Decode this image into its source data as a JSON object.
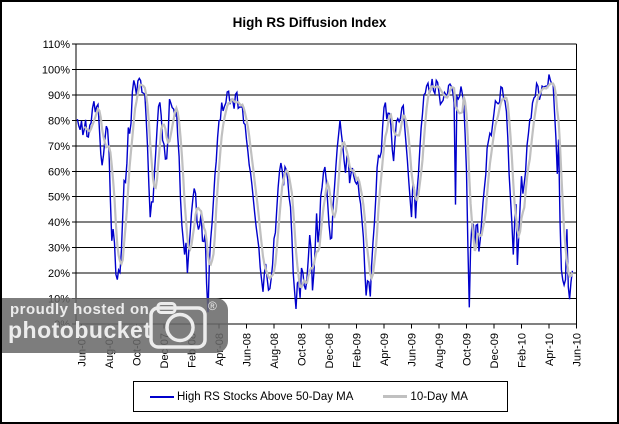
{
  "title": "High RS Diffusion Index",
  "legend": {
    "items": [
      {
        "label": "High RS Stocks Above 50-Day MA",
        "color": "#0000CC"
      },
      {
        "label": "10-Day MA",
        "color": "#C0C0C0"
      }
    ]
  },
  "watermark": {
    "line1": "proudly hosted on",
    "line2": "photobucket",
    "registered_mark": "®",
    "icon": "camera-icon"
  },
  "colors": {
    "series_blue": "#0000CC",
    "series_gray": "#C0C0C0",
    "grid": "#000000",
    "background": "#FFFFFF",
    "watermark_bg": "rgba(104,104,104,0.86)"
  },
  "chart_data": {
    "type": "line",
    "title": "High RS Diffusion Index",
    "xlabel": "",
    "ylabel": "",
    "ylim": [
      0,
      110
    ],
    "grid": "horizontal gridlines every 10%",
    "legend_position": "bottom center",
    "y_tick_labels": [
      "0%",
      "10%",
      "20%",
      "30%",
      "40%",
      "50%",
      "60%",
      "70%",
      "80%",
      "90%",
      "100%",
      "110%"
    ],
    "y_tick_values": [
      0,
      10,
      20,
      30,
      40,
      50,
      60,
      70,
      80,
      90,
      100,
      110
    ],
    "x_tick_labels": [
      "Jun-07",
      "Aug-07",
      "Oct-07",
      "Dec-07",
      "Feb-08",
      "Apr-08",
      "Jun-08",
      "Aug-08",
      "Oct-08",
      "Dec-08",
      "Feb-09",
      "Apr-09",
      "Jun-09",
      "Aug-09",
      "Oct-09",
      "Dec-09",
      "Feb-10",
      "Apr-10",
      "Jun-10"
    ],
    "x_unit": "months since Jun-2007 (ticks every 2 months)",
    "series": [
      {
        "name": "High RS Stocks Above 50-Day MA",
        "color": "#0000CC",
        "style": "jagged daily line",
        "keypoints_month_value": [
          [
            -0.3,
            82
          ],
          [
            -0.15,
            74
          ],
          [
            0,
            80
          ],
          [
            0.15,
            73
          ],
          [
            0.3,
            79
          ],
          [
            0.45,
            71
          ],
          [
            0.6,
            78
          ],
          [
            0.75,
            83
          ],
          [
            0.9,
            87
          ],
          [
            1.05,
            82
          ],
          [
            1.2,
            87
          ],
          [
            1.35,
            72
          ],
          [
            1.5,
            60
          ],
          [
            1.65,
            68
          ],
          [
            1.8,
            76
          ],
          [
            1.95,
            80
          ],
          [
            2.05,
            55
          ],
          [
            2.15,
            38
          ],
          [
            2.25,
            30
          ],
          [
            2.35,
            42
          ],
          [
            2.45,
            25
          ],
          [
            2.55,
            10
          ],
          [
            2.65,
            28
          ],
          [
            2.75,
            16
          ],
          [
            2.85,
            24
          ],
          [
            2.95,
            35
          ],
          [
            3.05,
            52
          ],
          [
            3.15,
            60
          ],
          [
            3.25,
            55
          ],
          [
            3.35,
            70
          ],
          [
            3.45,
            80
          ],
          [
            3.55,
            72
          ],
          [
            3.65,
            88
          ],
          [
            3.75,
            92
          ],
          [
            3.85,
            96
          ],
          [
            3.95,
            90
          ],
          [
            4.05,
            94
          ],
          [
            4.15,
            97
          ],
          [
            4.25,
            93
          ],
          [
            4.35,
            96
          ],
          [
            4.45,
            90
          ],
          [
            4.55,
            92
          ],
          [
            4.65,
            84
          ],
          [
            4.8,
            70
          ],
          [
            4.9,
            55
          ],
          [
            5,
            42
          ],
          [
            5.1,
            50
          ],
          [
            5.2,
            46
          ],
          [
            5.3,
            60
          ],
          [
            5.45,
            72
          ],
          [
            5.6,
            85
          ],
          [
            5.75,
            88
          ],
          [
            5.85,
            78
          ],
          [
            5.95,
            62
          ],
          [
            6.05,
            75
          ],
          [
            6.15,
            58
          ],
          [
            6.25,
            70
          ],
          [
            6.35,
            82
          ],
          [
            6.45,
            90
          ],
          [
            6.55,
            83
          ],
          [
            6.65,
            88
          ],
          [
            6.75,
            80
          ],
          [
            6.9,
            85
          ],
          [
            7.05,
            72
          ],
          [
            7.2,
            50
          ],
          [
            7.35,
            35
          ],
          [
            7.5,
            25
          ],
          [
            7.6,
            33
          ],
          [
            7.7,
            22
          ],
          [
            7.8,
            28
          ],
          [
            7.95,
            40
          ],
          [
            8.1,
            48
          ],
          [
            8.25,
            55
          ],
          [
            8.4,
            42
          ],
          [
            8.55,
            35
          ],
          [
            8.7,
            45
          ],
          [
            8.85,
            28
          ],
          [
            9,
            35
          ],
          [
            9.1,
            15
          ],
          [
            9.2,
            3
          ],
          [
            9.3,
            25
          ],
          [
            9.45,
            35
          ],
          [
            9.6,
            50
          ],
          [
            9.75,
            62
          ],
          [
            9.9,
            74
          ],
          [
            10.05,
            80
          ],
          [
            10.2,
            85
          ],
          [
            10.35,
            82
          ],
          [
            10.5,
            89
          ],
          [
            10.65,
            91
          ],
          [
            10.8,
            86
          ],
          [
            10.95,
            89
          ],
          [
            11.1,
            84
          ],
          [
            11.25,
            90
          ],
          [
            11.4,
            87
          ],
          [
            11.55,
            82
          ],
          [
            11.7,
            86
          ],
          [
            11.85,
            78
          ],
          [
            12,
            72
          ],
          [
            12.15,
            64
          ],
          [
            12.3,
            58
          ],
          [
            12.45,
            52
          ],
          [
            12.6,
            45
          ],
          [
            12.75,
            38
          ],
          [
            12.9,
            28
          ],
          [
            13.05,
            20
          ],
          [
            13.2,
            15
          ],
          [
            13.35,
            26
          ],
          [
            13.5,
            18
          ],
          [
            13.65,
            12
          ],
          [
            13.8,
            20
          ],
          [
            13.95,
            28
          ],
          [
            14.1,
            38
          ],
          [
            14.25,
            50
          ],
          [
            14.4,
            60
          ],
          [
            14.55,
            66
          ],
          [
            14.7,
            55
          ],
          [
            14.85,
            62
          ],
          [
            15,
            58
          ],
          [
            15.15,
            48
          ],
          [
            15.3,
            35
          ],
          [
            15.45,
            15
          ],
          [
            15.6,
            8
          ],
          [
            15.75,
            20
          ],
          [
            15.9,
            12
          ],
          [
            16.05,
            25
          ],
          [
            16.2,
            15
          ],
          [
            16.35,
            10
          ],
          [
            16.5,
            28
          ],
          [
            16.65,
            35
          ],
          [
            16.8,
            15
          ],
          [
            16.95,
            25
          ],
          [
            17.1,
            42
          ],
          [
            17.25,
            30
          ],
          [
            17.4,
            48
          ],
          [
            17.55,
            58
          ],
          [
            17.7,
            63
          ],
          [
            17.85,
            55
          ],
          [
            18,
            38
          ],
          [
            18.15,
            30
          ],
          [
            18.3,
            45
          ],
          [
            18.45,
            58
          ],
          [
            18.6,
            68
          ],
          [
            18.75,
            81
          ],
          [
            18.9,
            74
          ],
          [
            19.05,
            65
          ],
          [
            19.2,
            58
          ],
          [
            19.35,
            68
          ],
          [
            19.5,
            55
          ],
          [
            19.65,
            62
          ],
          [
            19.8,
            58
          ],
          [
            19.95,
            52
          ],
          [
            20.1,
            58
          ],
          [
            20.25,
            48
          ],
          [
            20.4,
            40
          ],
          [
            20.55,
            28
          ],
          [
            20.7,
            13
          ],
          [
            20.85,
            22
          ],
          [
            21,
            12
          ],
          [
            21.15,
            28
          ],
          [
            21.3,
            40
          ],
          [
            21.45,
            55
          ],
          [
            21.6,
            68
          ],
          [
            21.75,
            62
          ],
          [
            21.9,
            75
          ],
          [
            22.05,
            88
          ],
          [
            22.2,
            80
          ],
          [
            22.35,
            85
          ],
          [
            22.5,
            78
          ],
          [
            22.65,
            62
          ],
          [
            22.8,
            72
          ],
          [
            22.95,
            84
          ],
          [
            23.1,
            78
          ],
          [
            23.25,
            82
          ],
          [
            23.4,
            87
          ],
          [
            23.55,
            75
          ],
          [
            23.7,
            62
          ],
          [
            23.85,
            50
          ],
          [
            24,
            44
          ],
          [
            24.15,
            58
          ],
          [
            24.3,
            43
          ],
          [
            24.45,
            55
          ],
          [
            24.6,
            70
          ],
          [
            24.75,
            82
          ],
          [
            24.9,
            90
          ],
          [
            25.05,
            93
          ],
          [
            25.2,
            95
          ],
          [
            25.35,
            92
          ],
          [
            25.5,
            94
          ],
          [
            25.65,
            90
          ],
          [
            25.8,
            96
          ],
          [
            25.95,
            93
          ],
          [
            26.1,
            88
          ],
          [
            26.25,
            85
          ],
          [
            26.4,
            92
          ],
          [
            26.55,
            89
          ],
          [
            26.7,
            94
          ],
          [
            26.85,
            97
          ],
          [
            27,
            92
          ],
          [
            27.1,
            88
          ],
          [
            27.2,
            47
          ],
          [
            27.3,
            88
          ],
          [
            27.45,
            91
          ],
          [
            27.6,
            93
          ],
          [
            27.75,
            88
          ],
          [
            27.9,
            75
          ],
          [
            28,
            62
          ],
          [
            28.1,
            30
          ],
          [
            28.2,
            5
          ],
          [
            28.3,
            28
          ],
          [
            28.45,
            45
          ],
          [
            28.6,
            30
          ],
          [
            28.75,
            42
          ],
          [
            28.9,
            28
          ],
          [
            29.05,
            38
          ],
          [
            29.2,
            48
          ],
          [
            29.35,
            56
          ],
          [
            29.5,
            68
          ],
          [
            29.65,
            76
          ],
          [
            29.8,
            72
          ],
          [
            29.95,
            80
          ],
          [
            30.1,
            88
          ],
          [
            30.25,
            84
          ],
          [
            30.4,
            89
          ],
          [
            30.55,
            92
          ],
          [
            30.7,
            88
          ],
          [
            30.85,
            90
          ],
          [
            31,
            75
          ],
          [
            31.1,
            58
          ],
          [
            31.25,
            42
          ],
          [
            31.4,
            28
          ],
          [
            31.5,
            38
          ],
          [
            31.6,
            45
          ],
          [
            31.7,
            25
          ],
          [
            31.85,
            40
          ],
          [
            32,
            60
          ],
          [
            32.1,
            52
          ],
          [
            32.25,
            58
          ],
          [
            32.4,
            68
          ],
          [
            32.55,
            76
          ],
          [
            32.7,
            82
          ],
          [
            32.85,
            88
          ],
          [
            33,
            91
          ],
          [
            33.15,
            94
          ],
          [
            33.3,
            90
          ],
          [
            33.45,
            93
          ],
          [
            33.6,
            95
          ],
          [
            33.75,
            91
          ],
          [
            33.9,
            94
          ],
          [
            34.05,
            97
          ],
          [
            34.2,
            96
          ],
          [
            34.35,
            90
          ],
          [
            34.5,
            75
          ],
          [
            34.6,
            58
          ],
          [
            34.7,
            72
          ],
          [
            34.8,
            40
          ],
          [
            34.95,
            12
          ],
          [
            35.05,
            20
          ],
          [
            35.15,
            8
          ],
          [
            35.3,
            38
          ],
          [
            35.45,
            5
          ],
          [
            35.55,
            15
          ],
          [
            35.7,
            22
          ]
        ]
      },
      {
        "name": "10-Day MA",
        "color": "#C0C0C0",
        "style": "smooth",
        "derivation": "10-day (trailing) moving average of series 1"
      }
    ]
  }
}
